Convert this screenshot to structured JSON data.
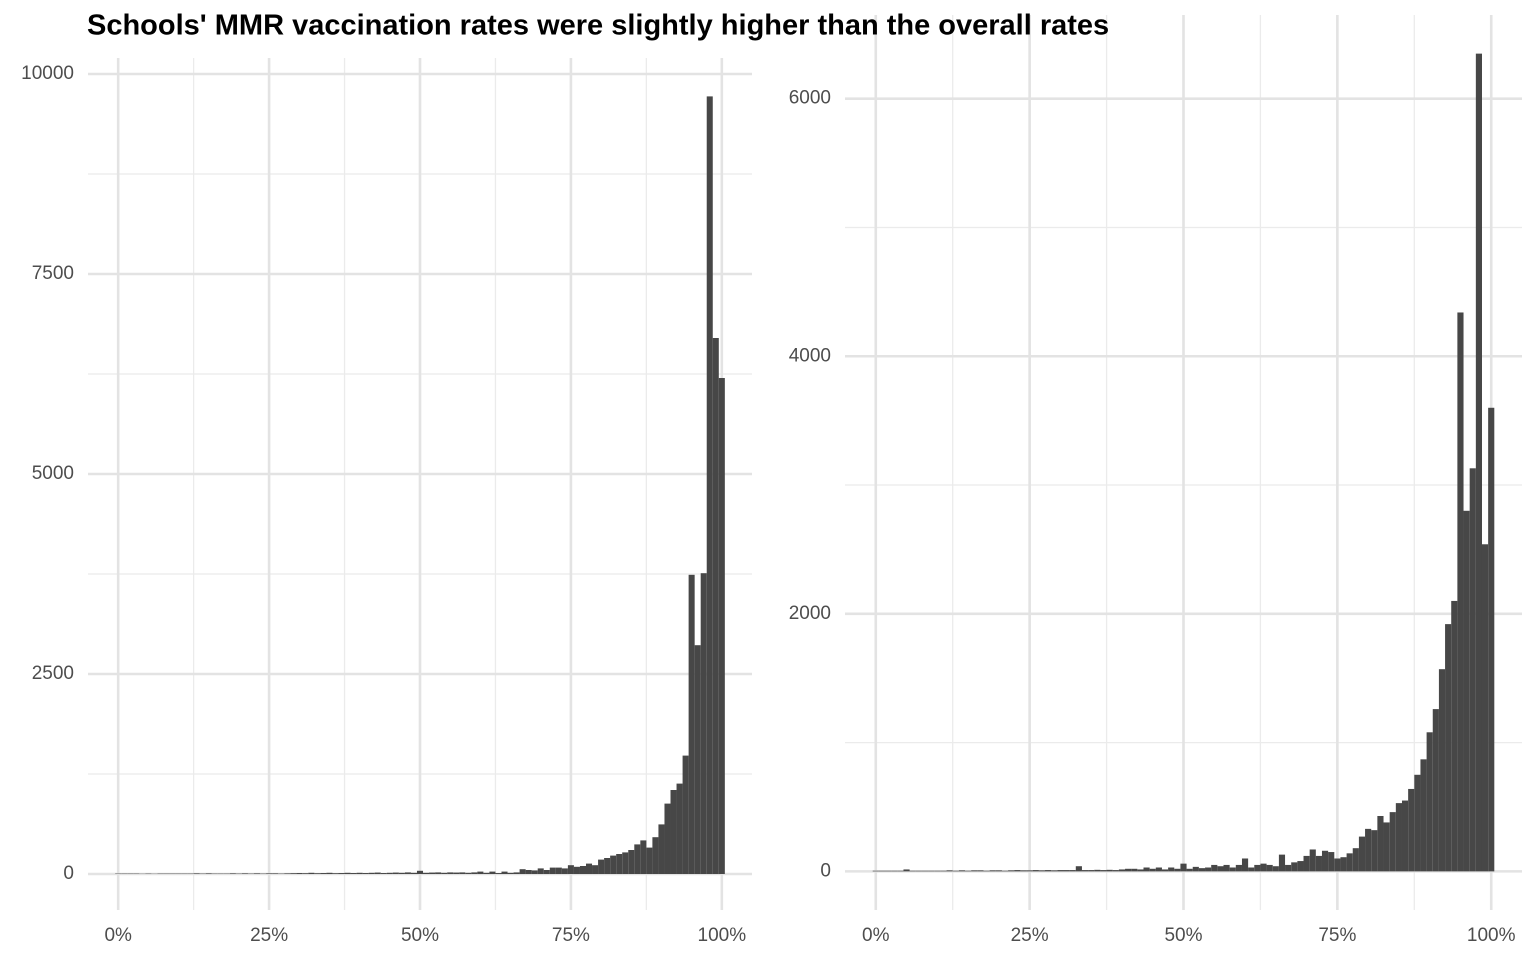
{
  "title": "Schools' MMR vaccination rates were slightly higher than the overall rates",
  "chart_data": [
    {
      "type": "histogram",
      "color": "#474747",
      "grid": true,
      "bins": [
        -0.5,
        0.5,
        1.5,
        2.5,
        3.5,
        4.5,
        5.5,
        6.5,
        7.5,
        8.5,
        9.5,
        10.5,
        11.5,
        12.5,
        13.5,
        14.5,
        15.5,
        16.5,
        17.5,
        18.5,
        19.5,
        20.5,
        21.5,
        22.5,
        23.5,
        24.5,
        25.5,
        26.5,
        27.5,
        28.5,
        29.5,
        30.5,
        31.5,
        32.5,
        33.5,
        34.5,
        35.5,
        36.5,
        37.5,
        38.5,
        39.5,
        40.5,
        41.5,
        42.5,
        43.5,
        44.5,
        45.5,
        46.5,
        47.5,
        48.5,
        49.5,
        50.5,
        51.5,
        52.5,
        53.5,
        54.5,
        55.5,
        56.5,
        57.5,
        58.5,
        59.5,
        60.5,
        61.5,
        62.5,
        63.5,
        64.5,
        65.5,
        66.5,
        67.5,
        68.5,
        69.5,
        70.5,
        71.5,
        72.5,
        73.5,
        74.5,
        75.5,
        76.5,
        77.5,
        78.5,
        79.5,
        80.5,
        81.5,
        82.5,
        83.5,
        84.5,
        85.5,
        86.5,
        87.5,
        88.5,
        89.5,
        90.5,
        91.5,
        92.5,
        93.5,
        94.5,
        95.5,
        96.5,
        97.5,
        98.5,
        99.5,
        100.5
      ],
      "values": [
        5,
        5,
        5,
        5,
        3,
        5,
        3,
        5,
        5,
        5,
        5,
        5,
        5,
        8,
        5,
        8,
        5,
        5,
        5,
        8,
        5,
        8,
        5,
        8,
        5,
        8,
        8,
        5,
        8,
        10,
        12,
        10,
        15,
        10,
        12,
        15,
        10,
        12,
        15,
        12,
        15,
        12,
        15,
        18,
        12,
        15,
        18,
        15,
        20,
        15,
        40,
        15,
        18,
        20,
        15,
        20,
        18,
        20,
        15,
        20,
        30,
        15,
        30,
        12,
        30,
        15,
        20,
        60,
        50,
        45,
        70,
        50,
        80,
        80,
        70,
        110,
        90,
        100,
        130,
        110,
        180,
        200,
        230,
        250,
        270,
        300,
        370,
        420,
        330,
        460,
        620,
        880,
        1050,
        1130,
        1480,
        3740,
        2860,
        3760,
        9720,
        6700,
        6200
      ],
      "xlim": [
        -5,
        105
      ],
      "xticks": [
        {
          "value": 0,
          "label": "0%"
        },
        {
          "value": 25,
          "label": "25%"
        },
        {
          "value": 50,
          "label": "50%"
        },
        {
          "value": 75,
          "label": "75%"
        },
        {
          "value": 100,
          "label": "100%"
        }
      ],
      "xminor": [
        12.5,
        37.5,
        62.5,
        87.5
      ],
      "ylim": [
        -450,
        10200
      ],
      "yticks": [
        0,
        2500,
        5000,
        7500,
        10000
      ],
      "yminor": [
        1250,
        3750,
        6250,
        8750
      ]
    },
    {
      "type": "histogram",
      "color": "#474747",
      "grid": true,
      "bins": [
        -0.5,
        0.5,
        1.5,
        2.5,
        3.5,
        4.5,
        5.5,
        6.5,
        7.5,
        8.5,
        9.5,
        10.5,
        11.5,
        12.5,
        13.5,
        14.5,
        15.5,
        16.5,
        17.5,
        18.5,
        19.5,
        20.5,
        21.5,
        22.5,
        23.5,
        24.5,
        25.5,
        26.5,
        27.5,
        28.5,
        29.5,
        30.5,
        31.5,
        32.5,
        33.5,
        34.5,
        35.5,
        36.5,
        37.5,
        38.5,
        39.5,
        40.5,
        41.5,
        42.5,
        43.5,
        44.5,
        45.5,
        46.5,
        47.5,
        48.5,
        49.5,
        50.5,
        51.5,
        52.5,
        53.5,
        54.5,
        55.5,
        56.5,
        57.5,
        58.5,
        59.5,
        60.5,
        61.5,
        62.5,
        63.5,
        64.5,
        65.5,
        66.5,
        67.5,
        68.5,
        69.5,
        70.5,
        71.5,
        72.5,
        73.5,
        74.5,
        75.5,
        76.5,
        77.5,
        78.5,
        79.5,
        80.5,
        81.5,
        82.5,
        83.5,
        84.5,
        85.5,
        86.5,
        87.5,
        88.5,
        89.5,
        90.5,
        91.5,
        92.5,
        93.5,
        94.5,
        95.5,
        96.5,
        97.5,
        98.5,
        99.5,
        100.5
      ],
      "values": [
        5,
        5,
        5,
        5,
        5,
        15,
        5,
        5,
        5,
        5,
        5,
        5,
        8,
        5,
        8,
        5,
        8,
        8,
        5,
        8,
        8,
        5,
        8,
        10,
        8,
        8,
        10,
        8,
        10,
        8,
        10,
        10,
        10,
        40,
        10,
        10,
        12,
        10,
        12,
        10,
        15,
        20,
        20,
        15,
        30,
        20,
        30,
        15,
        30,
        20,
        60,
        20,
        35,
        25,
        30,
        50,
        40,
        50,
        30,
        50,
        100,
        30,
        50,
        60,
        50,
        40,
        130,
        50,
        70,
        80,
        120,
        170,
        120,
        160,
        150,
        100,
        110,
        140,
        180,
        270,
        330,
        320,
        430,
        380,
        460,
        530,
        550,
        640,
        750,
        870,
        1080,
        1260,
        1570,
        1920,
        2100,
        4340,
        2800,
        3130,
        6350,
        2540,
        3600
      ],
      "xlim": [
        -5,
        105
      ],
      "xticks": [
        {
          "value": 0,
          "label": "0%"
        },
        {
          "value": 25,
          "label": "25%"
        },
        {
          "value": 50,
          "label": "50%"
        },
        {
          "value": 75,
          "label": "75%"
        },
        {
          "value": 100,
          "label": "100%"
        }
      ],
      "xminor": [
        12.5,
        37.5,
        62.5,
        87.5
      ],
      "ylim": [
        -300,
        6650
      ],
      "yticks": [
        0,
        2000,
        4000,
        6000
      ],
      "yminor": [
        1000,
        3000,
        5000
      ]
    }
  ]
}
